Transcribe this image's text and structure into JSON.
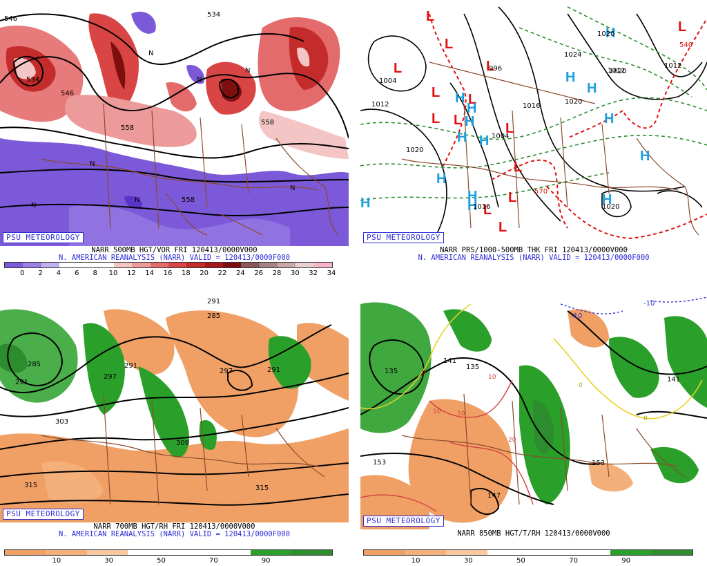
{
  "panels": [
    {
      "logo": "PSU METEOROLOGY",
      "title": "NARR 500MB HGT/VOR FRI 120413/0000V000",
      "subtitle": "N. AMERICAN REANALYSIS (NARR) VALID = 120413/0000F000",
      "colorbar": {
        "colors": [
          "#7b59d9",
          "#9a7ee3",
          "#c0b0ee",
          "#ffffff",
          "#ffffff",
          "#ffffff",
          "#f3c5c5",
          "#ec9a9a",
          "#e46b6b",
          "#d94545",
          "#c42b2b",
          "#a31919",
          "#7d0f0f",
          "#8a5a5a",
          "#a78484",
          "#c8a8a8",
          "#e8cfd2",
          "#f5b6c8"
        ],
        "ticks": [
          "0",
          "2",
          "4",
          "6",
          "8",
          "10",
          "12",
          "14",
          "16",
          "18",
          "20",
          "22",
          "24",
          "26",
          "28",
          "30",
          "32",
          "34"
        ]
      },
      "contour_labels": [
        "546",
        "534",
        "534",
        "546",
        "558",
        "558",
        "558"
      ]
    },
    {
      "logo": "PSU METEOROLOGY",
      "title": "NARR PRS/1000-500MB THK FRI 120413/0000V000",
      "subtitle": "N. AMERICAN REANALYSIS (NARR) VALID = 120413/0000F000",
      "contour_labels": [
        "1004",
        "1012",
        "1020",
        "1020",
        "1020",
        "1012",
        "1004",
        "1016",
        "1024",
        "1020",
        "996",
        "1016",
        "1012",
        "540",
        "570",
        "1020"
      ]
    },
    {
      "logo": "PSU METEOROLOGY",
      "title": "NARR 700MB HGT/RH FRI 120413/0000V000",
      "subtitle": "N. AMERICAN REANALYSIS (NARR) VALID = 120413/0000F000",
      "colorbar": {
        "colors": [
          "#f0a065",
          "#f4b07b",
          "#f8c9a0",
          "#ffffff",
          "#ffffff",
          "#ffffff",
          "#2aa02a",
          "#2d8c2d"
        ],
        "ticks": [
          "10",
          "30",
          "50",
          "70",
          "90"
        ]
      },
      "contour_labels": [
        "285",
        "291",
        "285",
        "291",
        "297",
        "303",
        "309",
        "315",
        "315",
        "291",
        "297",
        "291"
      ]
    },
    {
      "logo": "PSU METEOROLOGY",
      "title": "NARR 850MB HGT/T/RH 120413/0000V000",
      "colorbar": {
        "colors": [
          "#f0a065",
          "#f4b07b",
          "#f8c9a0",
          "#ffffff",
          "#ffffff",
          "#ffffff",
          "#2aa02a",
          "#2d8c2d"
        ],
        "ticks": [
          "10",
          "30",
          "50",
          "70",
          "90"
        ]
      },
      "contour_labels": [
        "135",
        "141",
        "135",
        "153",
        "147",
        "153",
        "141",
        "-10",
        "-10"
      ],
      "temp_labels": [
        "0",
        "10",
        "10",
        "10",
        "20",
        "0",
        "0"
      ]
    }
  ],
  "symbols": {
    "low": "L",
    "high": "H",
    "vort_max": "N",
    "low_color": "#e01010",
    "high_color": "#1aa0dd"
  }
}
